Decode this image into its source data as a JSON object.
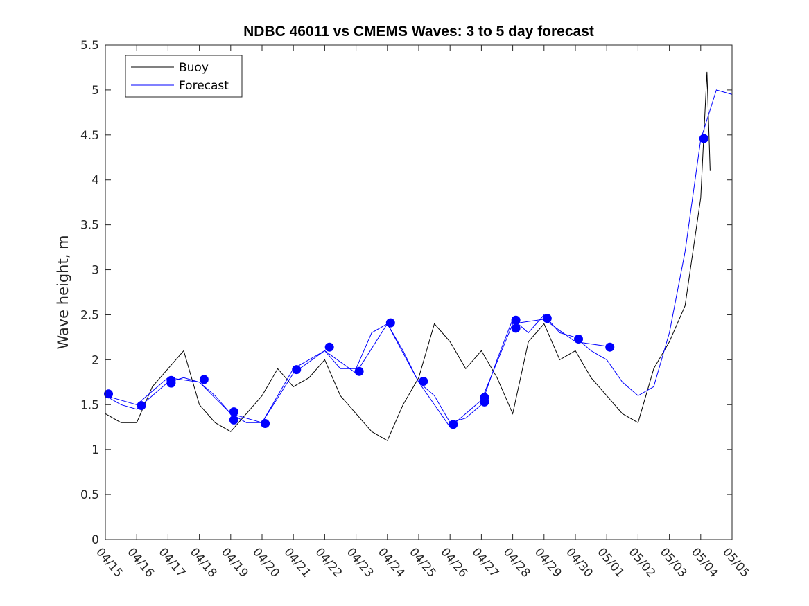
{
  "chart_data": {
    "type": "line",
    "title": "NDBC 46011 vs CMEMS Waves: 3 to 5 day forecast",
    "xlabel": "",
    "ylabel": "Wave height, m",
    "xlim": [
      "04/15",
      "05/05"
    ],
    "ylim": [
      0,
      5.5
    ],
    "x_ticks": [
      "04/15",
      "04/16",
      "04/17",
      "04/18",
      "04/19",
      "04/20",
      "04/21",
      "04/22",
      "04/23",
      "04/24",
      "04/25",
      "04/26",
      "04/27",
      "04/28",
      "04/29",
      "04/30",
      "05/01",
      "05/02",
      "05/03",
      "05/04",
      "05/05"
    ],
    "y_ticks": [
      "0",
      "0.5",
      "1",
      "1.5",
      "2",
      "2.5",
      "3",
      "3.5",
      "4",
      "4.5",
      "5",
      "5.5"
    ],
    "legend": {
      "location": "top-left",
      "entries": [
        "Buoy",
        "Forecast"
      ]
    },
    "colors": {
      "buoy": "#000000",
      "forecast": "#0000ff"
    },
    "series": [
      {
        "name": "Buoy",
        "x": [
          0.0,
          0.5,
          1.0,
          1.5,
          2.0,
          2.5,
          3.0,
          3.5,
          4.0,
          4.5,
          5.0,
          5.5,
          6.0,
          6.5,
          7.0,
          7.5,
          8.0,
          8.5,
          9.0,
          9.5,
          10.0,
          10.5,
          11.0,
          11.5,
          12.0,
          12.5,
          13.0,
          13.5,
          14.0,
          14.5,
          15.0,
          15.5,
          16.0,
          16.5,
          17.0,
          17.5,
          18.0,
          18.5,
          19.0,
          19.2,
          19.3
        ],
        "y": [
          1.4,
          1.3,
          1.3,
          1.7,
          1.9,
          2.1,
          1.5,
          1.3,
          1.2,
          1.4,
          1.6,
          1.9,
          1.7,
          1.8,
          2.0,
          1.6,
          1.4,
          1.2,
          1.1,
          1.5,
          1.8,
          2.4,
          2.2,
          1.9,
          2.1,
          1.8,
          1.4,
          2.2,
          2.4,
          2.0,
          2.1,
          1.8,
          1.6,
          1.4,
          1.3,
          1.9,
          2.2,
          2.6,
          3.8,
          5.2,
          4.1
        ]
      },
      {
        "name": "Forecast",
        "x": [
          0.0,
          0.5,
          1.0,
          1.5,
          2.0,
          2.5,
          3.0,
          3.5,
          4.0,
          4.5,
          5.0,
          5.5,
          6.0,
          6.5,
          7.0,
          7.5,
          8.0,
          8.5,
          9.0,
          9.5,
          10.0,
          10.5,
          11.0,
          11.5,
          12.0,
          12.5,
          13.0,
          13.5,
          14.0,
          14.5,
          15.0,
          15.5,
          16.0,
          16.5,
          17.0,
          17.5,
          18.0,
          18.5,
          19.0,
          19.5,
          20.0
        ],
        "y": [
          1.6,
          1.5,
          1.45,
          1.6,
          1.75,
          1.8,
          1.75,
          1.6,
          1.4,
          1.3,
          1.3,
          1.6,
          1.9,
          2.0,
          2.1,
          1.9,
          1.9,
          2.3,
          2.4,
          2.1,
          1.75,
          1.6,
          1.3,
          1.35,
          1.5,
          2.0,
          2.45,
          2.3,
          2.5,
          2.3,
          2.25,
          2.1,
          2.0,
          1.75,
          1.6,
          1.7,
          2.3,
          3.2,
          4.45,
          5.0,
          4.95
        ]
      },
      {
        "name": "Forecast",
        "x": [
          0.0,
          1.0,
          2.0,
          3.0,
          4.0,
          5.0,
          6.0,
          7.0,
          8.0,
          9.0,
          10.0,
          11.0,
          12.0,
          13.0,
          14.0,
          15.0,
          16.0
        ],
        "y": [
          1.6,
          1.5,
          1.8,
          1.75,
          1.4,
          1.3,
          1.85,
          2.1,
          1.85,
          2.4,
          1.75,
          1.25,
          1.55,
          2.4,
          2.45,
          2.2,
          2.15
        ]
      }
    ],
    "markers": {
      "x": [
        0.1,
        1.15,
        2.1,
        2.1,
        3.15,
        4.1,
        4.1,
        5.1,
        6.1,
        7.15,
        8.1,
        9.1,
        10.15,
        11.1,
        12.1,
        12.1,
        13.1,
        13.1,
        14.1,
        15.1,
        16.1,
        19.1
      ],
      "y": [
        1.62,
        1.49,
        1.77,
        1.74,
        1.78,
        1.42,
        1.33,
        1.29,
        1.89,
        2.14,
        1.87,
        2.41,
        1.76,
        1.28,
        1.58,
        1.53,
        2.44,
        2.35,
        2.46,
        2.23,
        2.14,
        4.46
      ]
    }
  }
}
